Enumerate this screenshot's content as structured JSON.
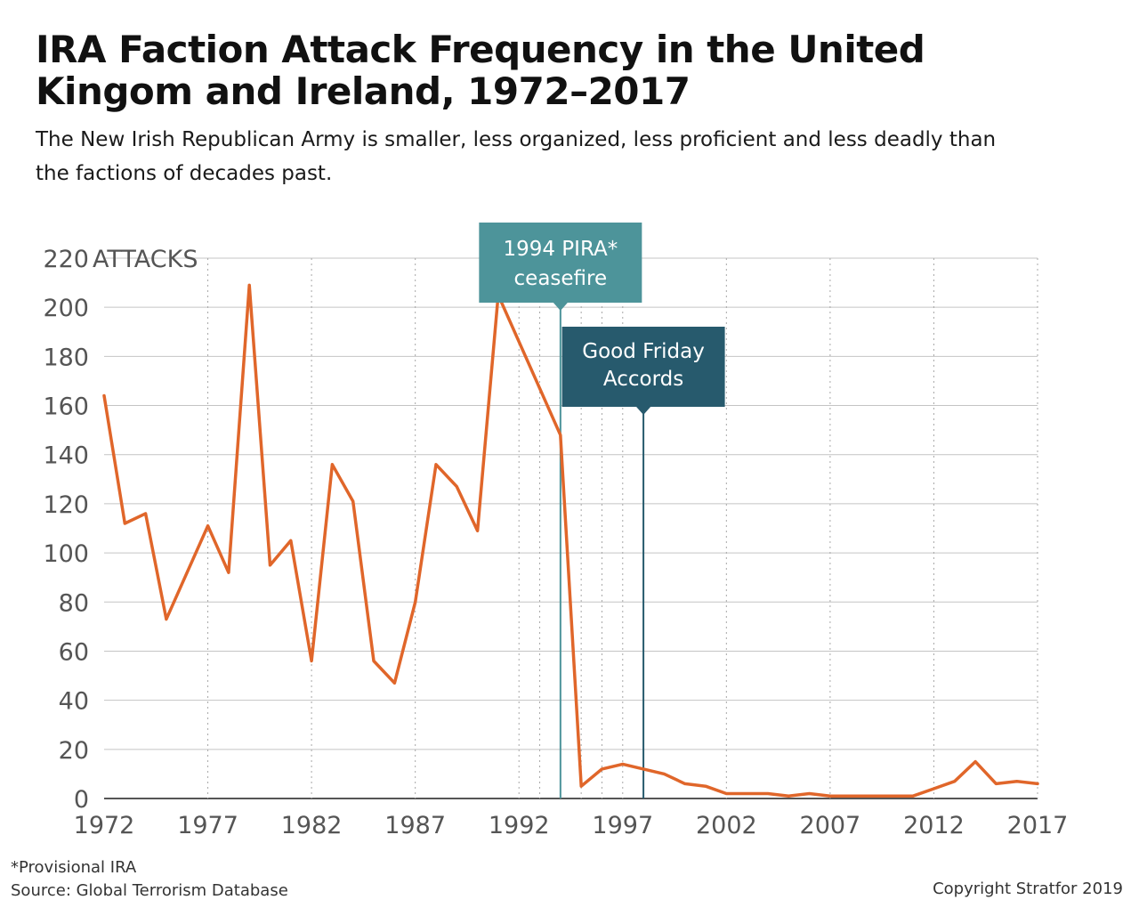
{
  "title": "IRA Faction Attack Frequency in the United Kingom and Ireland, 1972–2017",
  "subtitle": "The New Irish Republican Army is smaller, less organized, less proficient and less deadly than the factions of decades past.",
  "footnote": "*Provisional IRA",
  "source": "Source: Global Terrorism Database",
  "copyright": "Copyright Stratfor 2019",
  "colors": {
    "line": "#e0662a",
    "grid": "#c4c4c4",
    "annotation_1994": "#4d949a",
    "annotation_1998": "#275a6d"
  },
  "chart_data": {
    "type": "line",
    "title": "IRA Faction Attack Frequency in the United Kingom and Ireland, 1972–2017",
    "ylabel": "ATTACKS",
    "xlabel": "",
    "xlim": [
      1972,
      2017
    ],
    "ylim": [
      0,
      220
    ],
    "x_ticks": [
      "1972",
      "1977",
      "1982",
      "1987",
      "1992",
      "1997",
      "2002",
      "2007",
      "2012",
      "2017"
    ],
    "y_ticks": [
      "0",
      "20",
      "40",
      "60",
      "80",
      "100",
      "120",
      "140",
      "160",
      "180",
      "200",
      "220"
    ],
    "grid": "horizontal solid, vertical dotted",
    "series": [
      {
        "name": "Attacks",
        "x": [
          1972,
          1973,
          1974,
          1975,
          1976,
          1977,
          1978,
          1979,
          1980,
          1981,
          1982,
          1983,
          1984,
          1985,
          1986,
          1987,
          1988,
          1989,
          1990,
          1991,
          1992,
          1993,
          1994,
          1995,
          1996,
          1997,
          1998,
          1999,
          2000,
          2001,
          2002,
          2003,
          2004,
          2005,
          2006,
          2007,
          2008,
          2009,
          2010,
          2011,
          2012,
          2013,
          2014,
          2015,
          2016,
          2017
        ],
        "values": [
          164,
          112,
          116,
          73,
          92,
          111,
          92,
          209,
          95,
          105,
          56,
          136,
          121,
          56,
          47,
          80,
          136,
          127,
          109,
          205,
          186,
          167,
          148,
          5,
          12,
          14,
          12,
          10,
          6,
          5,
          2,
          2,
          2,
          1,
          2,
          1,
          1,
          1,
          1,
          1,
          4,
          7,
          15,
          6,
          7,
          6
        ]
      }
    ],
    "annotations": [
      {
        "year": 1994,
        "label_line1": "1994 PIRA*",
        "label_line2": "ceasefire"
      },
      {
        "year": 1998,
        "label_line1": "Good Friday",
        "label_line2": "Accords"
      }
    ]
  }
}
